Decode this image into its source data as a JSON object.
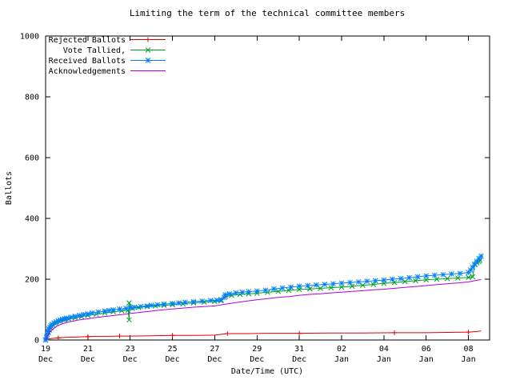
{
  "colors": {
    "background": "#ffffff",
    "axis": "#000000",
    "rejected": "#e00000",
    "tallied": "#00a020",
    "received": "#0080ff",
    "acknowledgements": "#b000e0"
  },
  "chart_data": {
    "type": "line",
    "title": "Limiting the term of the technical committee members",
    "xlabel": "Date/Time (UTC)",
    "ylabel": "Ballots",
    "ylim": [
      0,
      1000
    ],
    "yticks": [
      0,
      200,
      400,
      600,
      800,
      1000
    ],
    "xlim_days": [
      0,
      21
    ],
    "grid": false,
    "legend_position": "top-left",
    "xticks": [
      {
        "day": 0,
        "label": "19",
        "sub": "Dec"
      },
      {
        "day": 2,
        "label": "21",
        "sub": "Dec"
      },
      {
        "day": 4,
        "label": "23",
        "sub": "Dec"
      },
      {
        "day": 6,
        "label": "25",
        "sub": "Dec"
      },
      {
        "day": 8,
        "label": "27",
        "sub": "Dec"
      },
      {
        "day": 10,
        "label": "29",
        "sub": "Dec"
      },
      {
        "day": 12,
        "label": "31",
        "sub": "Dec"
      },
      {
        "day": 14,
        "label": "02",
        "sub": "Jan"
      },
      {
        "day": 16,
        "label": "04",
        "sub": "Jan"
      },
      {
        "day": 18,
        "label": "06",
        "sub": "Jan"
      },
      {
        "day": 20,
        "label": "08",
        "sub": "Jan"
      }
    ],
    "series": [
      {
        "name": "Rejected Ballots",
        "color": "#e00000",
        "marker": "plus",
        "marker_every": 3,
        "points": [
          [
            0,
            0
          ],
          [
            0.15,
            3
          ],
          [
            0.3,
            5
          ],
          [
            0.6,
            7
          ],
          [
            1.0,
            9
          ],
          [
            1.5,
            10
          ],
          [
            2.0,
            11
          ],
          [
            2.5,
            12
          ],
          [
            3.0,
            12
          ],
          [
            3.5,
            13
          ],
          [
            4.0,
            13
          ],
          [
            5.0,
            14
          ],
          [
            6.0,
            15
          ],
          [
            7.0,
            15
          ],
          [
            8.0,
            16
          ],
          [
            8.6,
            21
          ],
          [
            9.5,
            21
          ],
          [
            10.5,
            22
          ],
          [
            12.0,
            22
          ],
          [
            13.5,
            23
          ],
          [
            15.0,
            23
          ],
          [
            16.5,
            24
          ],
          [
            18.0,
            24
          ],
          [
            19.0,
            25
          ],
          [
            20.0,
            26
          ],
          [
            20.4,
            28
          ],
          [
            20.6,
            30
          ]
        ]
      },
      {
        "name": "Vote Tallied,",
        "color": "#00a020",
        "marker": "x",
        "marker_every": 1,
        "points": [
          [
            0,
            0
          ],
          [
            0.06,
            12
          ],
          [
            0.12,
            24
          ],
          [
            0.18,
            33
          ],
          [
            0.25,
            40
          ],
          [
            0.35,
            48
          ],
          [
            0.5,
            55
          ],
          [
            0.7,
            61
          ],
          [
            0.9,
            66
          ],
          [
            1.1,
            69
          ],
          [
            1.4,
            73
          ],
          [
            1.7,
            77
          ],
          [
            2.0,
            81
          ],
          [
            2.4,
            85
          ],
          [
            2.8,
            89
          ],
          [
            3.2,
            93
          ],
          [
            3.6,
            96
          ],
          [
            3.9,
            98
          ],
          [
            3.95,
            66
          ],
          [
            3.95,
            122
          ],
          [
            4.1,
            104
          ],
          [
            4.4,
            107
          ],
          [
            4.8,
            110
          ],
          [
            5.2,
            112
          ],
          [
            5.6,
            114
          ],
          [
            6.0,
            116
          ],
          [
            6.5,
            119
          ],
          [
            7.0,
            122
          ],
          [
            7.5,
            125
          ],
          [
            8.0,
            127
          ],
          [
            8.3,
            129
          ],
          [
            8.5,
            143
          ],
          [
            8.8,
            147
          ],
          [
            9.2,
            150
          ],
          [
            9.6,
            152
          ],
          [
            10.0,
            154
          ],
          [
            10.5,
            157
          ],
          [
            11.0,
            160
          ],
          [
            11.5,
            163
          ],
          [
            12.0,
            166
          ],
          [
            12.5,
            168
          ],
          [
            13.0,
            170
          ],
          [
            13.5,
            172
          ],
          [
            14.0,
            174
          ],
          [
            14.5,
            177
          ],
          [
            15.0,
            180
          ],
          [
            15.5,
            183
          ],
          [
            16.0,
            186
          ],
          [
            16.5,
            189
          ],
          [
            17.0,
            192
          ],
          [
            17.5,
            195
          ],
          [
            18.0,
            198
          ],
          [
            18.5,
            200
          ],
          [
            19.0,
            202
          ],
          [
            19.5,
            204
          ],
          [
            20.0,
            206
          ],
          [
            20.2,
            208
          ],
          [
            20.3,
            248
          ],
          [
            20.4,
            254
          ],
          [
            20.5,
            258
          ],
          [
            20.55,
            262
          ]
        ]
      },
      {
        "name": "Received Ballots",
        "color": "#0080ff",
        "marker": "star",
        "marker_every": 1,
        "points": [
          [
            0,
            0
          ],
          [
            0.04,
            8
          ],
          [
            0.08,
            18
          ],
          [
            0.12,
            28
          ],
          [
            0.16,
            36
          ],
          [
            0.2,
            42
          ],
          [
            0.25,
            47
          ],
          [
            0.3,
            51
          ],
          [
            0.4,
            56
          ],
          [
            0.5,
            60
          ],
          [
            0.6,
            63
          ],
          [
            0.7,
            66
          ],
          [
            0.8,
            68
          ],
          [
            0.9,
            70
          ],
          [
            1.0,
            72
          ],
          [
            1.2,
            75
          ],
          [
            1.4,
            78
          ],
          [
            1.6,
            81
          ],
          [
            1.8,
            84
          ],
          [
            2.0,
            86
          ],
          [
            2.2,
            89
          ],
          [
            2.5,
            92
          ],
          [
            2.8,
            95
          ],
          [
            3.0,
            97
          ],
          [
            3.2,
            99
          ],
          [
            3.5,
            102
          ],
          [
            3.8,
            104
          ],
          [
            4.0,
            106
          ],
          [
            4.2,
            108
          ],
          [
            4.5,
            110
          ],
          [
            4.8,
            112
          ],
          [
            5.0,
            114
          ],
          [
            5.3,
            116
          ],
          [
            5.6,
            118
          ],
          [
            6.0,
            120
          ],
          [
            6.3,
            122
          ],
          [
            6.6,
            124
          ],
          [
            7.0,
            126
          ],
          [
            7.4,
            128
          ],
          [
            7.8,
            130
          ],
          [
            8.1,
            131
          ],
          [
            8.3,
            133
          ],
          [
            8.45,
            140
          ],
          [
            8.5,
            149
          ],
          [
            8.7,
            152
          ],
          [
            9.0,
            155
          ],
          [
            9.3,
            157
          ],
          [
            9.6,
            159
          ],
          [
            10.0,
            161
          ],
          [
            10.4,
            164
          ],
          [
            10.8,
            168
          ],
          [
            11.2,
            171
          ],
          [
            11.6,
            174
          ],
          [
            12.0,
            177
          ],
          [
            12.4,
            179
          ],
          [
            12.8,
            181
          ],
          [
            13.2,
            183
          ],
          [
            13.6,
            185
          ],
          [
            14.0,
            187
          ],
          [
            14.4,
            189
          ],
          [
            14.8,
            191
          ],
          [
            15.2,
            193
          ],
          [
            15.6,
            195
          ],
          [
            16.0,
            197
          ],
          [
            16.4,
            200
          ],
          [
            16.8,
            202
          ],
          [
            17.2,
            205
          ],
          [
            17.6,
            208
          ],
          [
            18.0,
            211
          ],
          [
            18.4,
            213
          ],
          [
            18.8,
            215
          ],
          [
            19.2,
            217
          ],
          [
            19.6,
            219
          ],
          [
            20.0,
            222
          ],
          [
            20.1,
            230
          ],
          [
            20.2,
            240
          ],
          [
            20.3,
            250
          ],
          [
            20.4,
            259
          ],
          [
            20.5,
            268
          ],
          [
            20.6,
            276
          ]
        ]
      },
      {
        "name": "Acknowledgements",
        "color": "#b000e0",
        "marker": "none",
        "marker_every": 0,
        "points": [
          [
            0,
            0
          ],
          [
            0.1,
            15
          ],
          [
            0.2,
            26
          ],
          [
            0.35,
            36
          ],
          [
            0.5,
            44
          ],
          [
            0.7,
            51
          ],
          [
            1.0,
            58
          ],
          [
            1.5,
            65
          ],
          [
            2.0,
            70
          ],
          [
            2.5,
            75
          ],
          [
            3.0,
            79
          ],
          [
            3.5,
            83
          ],
          [
            4.0,
            87
          ],
          [
            4.5,
            91
          ],
          [
            5.0,
            95
          ],
          [
            5.5,
            99
          ],
          [
            6.0,
            102
          ],
          [
            6.5,
            105
          ],
          [
            7.0,
            108
          ],
          [
            7.5,
            110
          ],
          [
            8.0,
            112
          ],
          [
            8.5,
            118
          ],
          [
            9.0,
            123
          ],
          [
            9.5,
            128
          ],
          [
            10.0,
            132
          ],
          [
            10.5,
            136
          ],
          [
            11.0,
            140
          ],
          [
            11.5,
            143
          ],
          [
            12.0,
            147
          ],
          [
            12.5,
            150
          ],
          [
            13.0,
            152
          ],
          [
            13.5,
            155
          ],
          [
            14.0,
            157
          ],
          [
            14.5,
            160
          ],
          [
            15.0,
            162
          ],
          [
            15.5,
            165
          ],
          [
            16.0,
            167
          ],
          [
            16.5,
            170
          ],
          [
            17.0,
            173
          ],
          [
            17.5,
            176
          ],
          [
            18.0,
            179
          ],
          [
            18.5,
            182
          ],
          [
            19.0,
            185
          ],
          [
            19.5,
            188
          ],
          [
            20.0,
            191
          ],
          [
            20.3,
            195
          ],
          [
            20.6,
            199
          ]
        ]
      }
    ]
  }
}
